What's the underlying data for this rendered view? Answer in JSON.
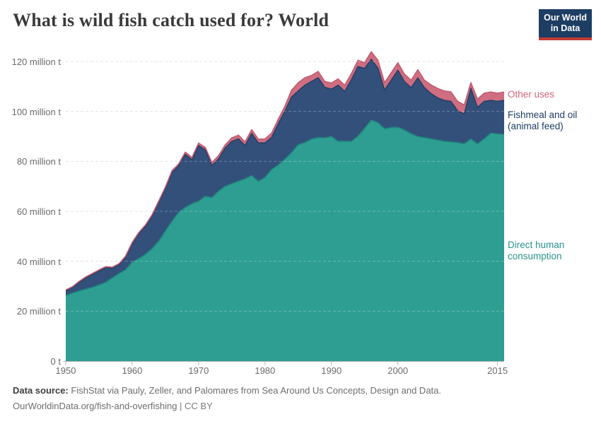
{
  "header": {
    "title": "What is wild fish catch used for? World"
  },
  "logo": {
    "line1": "Our World",
    "line2": "in Data",
    "bg_color": "#1d3d63",
    "bar_color": "#c43b33"
  },
  "footer": {
    "source_label": "Data source:",
    "source_text": "FishStat via Pauly, Zeller, and Palomares from Sea Around Us Concepts, Design and Data.",
    "link": "OurWorldinData.org/fish-and-overfishing",
    "license_suffix": "| CC BY"
  },
  "chart_data": {
    "type": "area",
    "stacked": true,
    "title": "What is wild fish catch used for? World",
    "xlabel": "",
    "ylabel": "",
    "unit": "million tonnes",
    "xlim": [
      1950,
      2016
    ],
    "ylim": [
      0,
      120
    ],
    "grid": "dashed-horizontal",
    "legend_position": "right-of-plot",
    "years": [
      1950,
      1951,
      1952,
      1953,
      1954,
      1955,
      1956,
      1957,
      1958,
      1959,
      1960,
      1961,
      1962,
      1963,
      1964,
      1965,
      1966,
      1967,
      1968,
      1969,
      1970,
      1971,
      1972,
      1973,
      1974,
      1975,
      1976,
      1977,
      1978,
      1979,
      1980,
      1981,
      1982,
      1983,
      1984,
      1985,
      1986,
      1987,
      1988,
      1989,
      1990,
      1991,
      1992,
      1993,
      1994,
      1995,
      1996,
      1997,
      1998,
      1999,
      2000,
      2001,
      2002,
      2003,
      2004,
      2005,
      2006,
      2007,
      2008,
      2009,
      2010,
      2011,
      2012,
      2013,
      2014,
      2015,
      2016
    ],
    "series": [
      {
        "name": "Direct human consumption",
        "legend_label": "Direct human\nconsumption",
        "fill": "#2f9e92",
        "stroke": "#1f8a7e",
        "label_color": "#2a948b",
        "values": [
          26.2,
          27.2,
          28.1,
          28.8,
          29.5,
          30.5,
          31.5,
          33.3,
          35,
          36.5,
          39.6,
          41,
          42.7,
          45,
          48,
          52,
          56,
          59.5,
          61.5,
          63,
          64,
          66,
          65.5,
          68,
          70,
          71,
          72,
          73,
          74.3,
          72,
          73.5,
          76.7,
          78.5,
          80.9,
          83.5,
          86.6,
          87.5,
          88.9,
          89.5,
          89.4,
          89.9,
          88,
          88,
          88,
          90,
          93.2,
          96.5,
          95.5,
          93,
          93.5,
          93.6,
          92.5,
          91,
          89.9,
          89.5,
          89,
          88.5,
          88,
          87.8,
          87.5,
          87,
          88.9,
          87,
          89,
          91.3,
          91,
          90.8
        ]
      },
      {
        "name": "Fishmeal and oil (animal feed)",
        "legend_label": "Fishmeal and oil\n(animal feed)",
        "fill": "#33507b",
        "stroke": "#283f63",
        "label_color": "#1d3d63",
        "values": [
          2,
          2.3,
          3.4,
          4.5,
          5.2,
          5.6,
          5.9,
          3.9,
          3.6,
          5,
          7.4,
          10,
          11.3,
          13,
          15.5,
          17,
          19.5,
          18.7,
          21.3,
          17.6,
          22.3,
          18.6,
          12.8,
          13,
          15.3,
          17,
          17,
          13.3,
          16.9,
          15.4,
          13.9,
          12.9,
          16.6,
          19.2,
          22.3,
          21.6,
          23,
          23.1,
          24,
          20.2,
          19,
          22.5,
          20,
          24.6,
          28,
          24,
          24.4,
          21.8,
          15.5,
          19,
          22.9,
          19.4,
          18.5,
          23.5,
          20,
          18.1,
          16.9,
          16.4,
          16.2,
          12.7,
          12,
          20.3,
          14.6,
          15,
          13.1,
          13,
          13.6
        ]
      },
      {
        "name": "Other uses",
        "legend_label": "Other uses",
        "fill": "#cf6d81",
        "stroke": "#c15b72",
        "label_color": "#d0647c",
        "values": [
          0.3,
          0.3,
          0.4,
          0.4,
          0.4,
          0.4,
          0.4,
          0.4,
          0.4,
          0.5,
          0.5,
          0.5,
          0.5,
          0.6,
          0.6,
          0.7,
          0.8,
          0.8,
          0.9,
          0.9,
          1,
          1,
          1.2,
          1.3,
          1.3,
          1.4,
          1.5,
          1.5,
          1.5,
          1.5,
          1.6,
          1.7,
          1.8,
          2,
          2.7,
          3.3,
          3,
          2.4,
          2.5,
          2.4,
          2.5,
          2.5,
          2.5,
          2.5,
          2.5,
          2.3,
          3,
          3.2,
          3,
          3,
          3,
          3,
          3,
          3.3,
          3,
          3.5,
          3.8,
          3.8,
          3.8,
          3.8,
          3.6,
          2.3,
          3.3,
          3.3,
          3.4,
          3.3,
          3.4
        ]
      }
    ],
    "yticks": [
      {
        "value": 120,
        "label": "120 million t"
      },
      {
        "value": 100,
        "label": "100 million t"
      },
      {
        "value": 80,
        "label": "80 million t"
      },
      {
        "value": 60,
        "label": "60 million t"
      },
      {
        "value": 40,
        "label": "40 million t"
      },
      {
        "value": 20,
        "label": "20 million t"
      },
      {
        "value": 0,
        "label": "0 t"
      }
    ],
    "xticks": [
      {
        "value": 1950,
        "label": "1950"
      },
      {
        "value": 1960,
        "label": "1960"
      },
      {
        "value": 1970,
        "label": "1970"
      },
      {
        "value": 1980,
        "label": "1980"
      },
      {
        "value": 1990,
        "label": "1990"
      },
      {
        "value": 2000,
        "label": "2000"
      },
      {
        "value": 2015,
        "label": "2015"
      }
    ]
  }
}
